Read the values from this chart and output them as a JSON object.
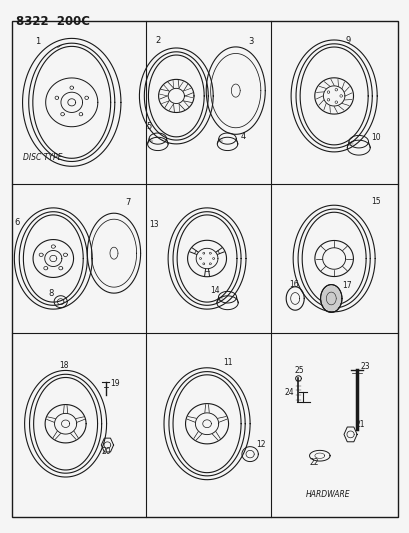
{
  "title": "8322 200C",
  "bg": "#f5f5f5",
  "lc": "#1a1a1a",
  "tc": "#1a1a1a",
  "figsize": [
    4.1,
    5.33
  ],
  "dpi": 100,
  "border": [
    0.03,
    0.03,
    0.94,
    0.93
  ],
  "row_sep": [
    0.375,
    0.655
  ],
  "col_sep": [
    0.355,
    0.66
  ],
  "cells": {
    "r0c0": [
      0.03,
      0.655,
      0.355,
      0.96
    ],
    "r0c1": [
      0.355,
      0.655,
      0.66,
      0.96
    ],
    "r0c2": [
      0.66,
      0.655,
      0.97,
      0.96
    ],
    "r1c0": [
      0.03,
      0.375,
      0.355,
      0.655
    ],
    "r1c1": [
      0.355,
      0.375,
      0.66,
      0.655
    ],
    "r1c2": [
      0.66,
      0.375,
      0.97,
      0.655
    ],
    "r2c0": [
      0.03,
      0.03,
      0.355,
      0.375
    ],
    "r2c1": [
      0.355,
      0.03,
      0.66,
      0.375
    ],
    "r2c2": [
      0.66,
      0.03,
      0.97,
      0.375
    ]
  }
}
